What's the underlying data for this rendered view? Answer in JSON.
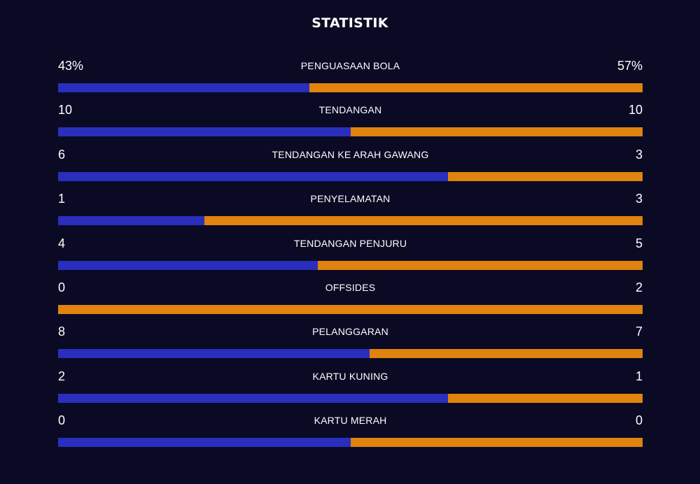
{
  "title": "STATISTIK",
  "colors": {
    "background": "#0a0a24",
    "home": "#2a2ebd",
    "away": "#e0830f"
  },
  "stats": [
    {
      "label": "PENGUASAAN BOLA",
      "home": "43%",
      "away": "57%",
      "home_share": 0.43
    },
    {
      "label": "TENDANGAN",
      "home": "10",
      "away": "10",
      "home_share": 0.5
    },
    {
      "label": "TENDANGAN KE ARAH GAWANG",
      "home": "6",
      "away": "3",
      "home_share": 0.6667
    },
    {
      "label": "PENYELAMATAN",
      "home": "1",
      "away": "3",
      "home_share": 0.25
    },
    {
      "label": "TENDANGAN PENJURU",
      "home": "4",
      "away": "5",
      "home_share": 0.4444
    },
    {
      "label": "OFFSIDES",
      "home": "0",
      "away": "2",
      "home_share": 0
    },
    {
      "label": "PELANGGARAN",
      "home": "8",
      "away": "7",
      "home_share": 0.5333
    },
    {
      "label": "KARTU KUNING",
      "home": "2",
      "away": "1",
      "home_share": 0.6667
    },
    {
      "label": "KARTU MERAH",
      "home": "0",
      "away": "0",
      "home_share": 0.5
    }
  ]
}
